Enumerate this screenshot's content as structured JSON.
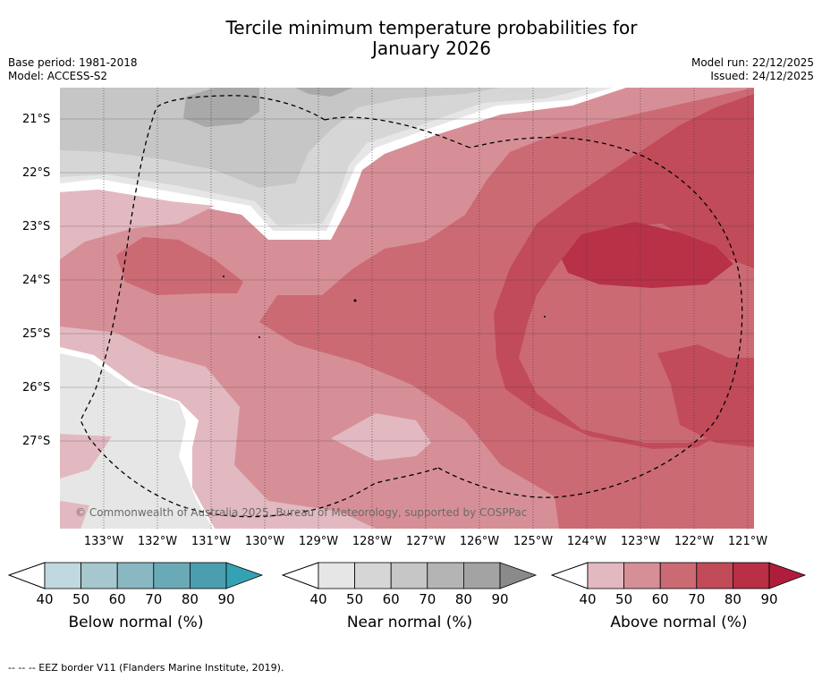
{
  "title_line1": "Tercile minimum temperature probabilities for",
  "title_line2": "January 2026",
  "base_period": "Base period: 1981-2018",
  "model": "Model: ACCESS-S2",
  "model_run": "Model run: 22/12/2025",
  "issued": "Issued: 24/12/2025",
  "lat_labels": [
    "21°S",
    "22°S",
    "23°S",
    "24°S",
    "25°S",
    "26°S",
    "27°S"
  ],
  "lon_labels": [
    "133°W",
    "132°W",
    "131°W",
    "130°W",
    "129°W",
    "128°W",
    "127°W",
    "126°W",
    "125°W",
    "124°W",
    "123°W",
    "122°W",
    "121°W"
  ],
  "copyright": "© Commonwealth of Australia 2025, Bureau of Meteorology, supported by COSPPac",
  "colorbars": {
    "below": {
      "title": "Below normal (%)",
      "ticks": [
        "40",
        "50",
        "60",
        "70",
        "80",
        "90"
      ],
      "colors": [
        "#c0d8df",
        "#a6c7ce",
        "#89b8c3",
        "#6aaab7",
        "#4a9eae",
        "#35a2b4"
      ]
    },
    "near": {
      "title": "Near normal (%)",
      "ticks": [
        "40",
        "50",
        "60",
        "70",
        "80",
        "90"
      ],
      "colors": [
        "#e6e6e6",
        "#d6d6d6",
        "#c6c6c6",
        "#b4b4b4",
        "#a3a3a3",
        "#8a8a8a"
      ]
    },
    "above": {
      "title": "Above normal (%)",
      "ticks": [
        "40",
        "50",
        "60",
        "70",
        "80",
        "90"
      ],
      "colors": [
        "#e2b9c0",
        "#d78f97",
        "#cc6a74",
        "#c24b59",
        "#b82f46",
        "#b01d3c"
      ]
    }
  },
  "footer": "--  --  -- EEZ border V11 (Flanders Marine Institute, 2019)."
}
